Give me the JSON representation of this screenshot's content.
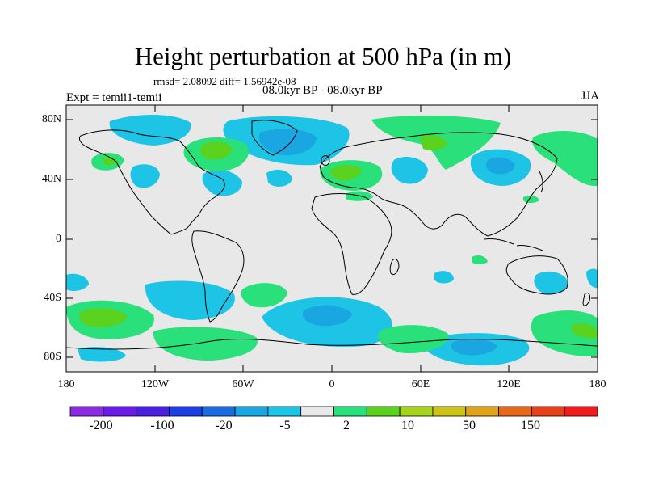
{
  "map": {
    "title": "Height perturbation at 500 hPa (in m)",
    "stats": "rmsd= 2.08092 diff= 1.56942e-08",
    "period": "08.0kyr BP - 08.0kyr BP",
    "experiment": "Expt = temii1-temii",
    "season": "JJA",
    "lat_labels": [
      "80N",
      "40N",
      "0",
      "40S",
      "80S"
    ],
    "lon_labels": [
      "180",
      "120W",
      "60W",
      "0",
      "60E",
      "120E",
      "180"
    ],
    "colors": {
      "background_field": "#e8e8e8",
      "neg_light": "#1ec4e6",
      "neg_medium": "#1aa6e0",
      "pos_light": "#2ae07a",
      "pos_medium": "#5ad21e",
      "coastline": "#000000"
    }
  },
  "colorbar": {
    "colors": [
      "#8a2be2",
      "#6a1be8",
      "#4a1fe0",
      "#1c3fe4",
      "#1a6ce0",
      "#1aa6e0",
      "#1ec4e6",
      "#e8e8e8",
      "#2ae07a",
      "#5ad21e",
      "#a6d41e",
      "#cdc41a",
      "#e0a41a",
      "#e66a1a",
      "#e6401a",
      "#f21a1a"
    ],
    "labels": [
      "-200",
      "-100",
      "-20",
      "-5",
      "2",
      "10",
      "50",
      "150"
    ]
  }
}
